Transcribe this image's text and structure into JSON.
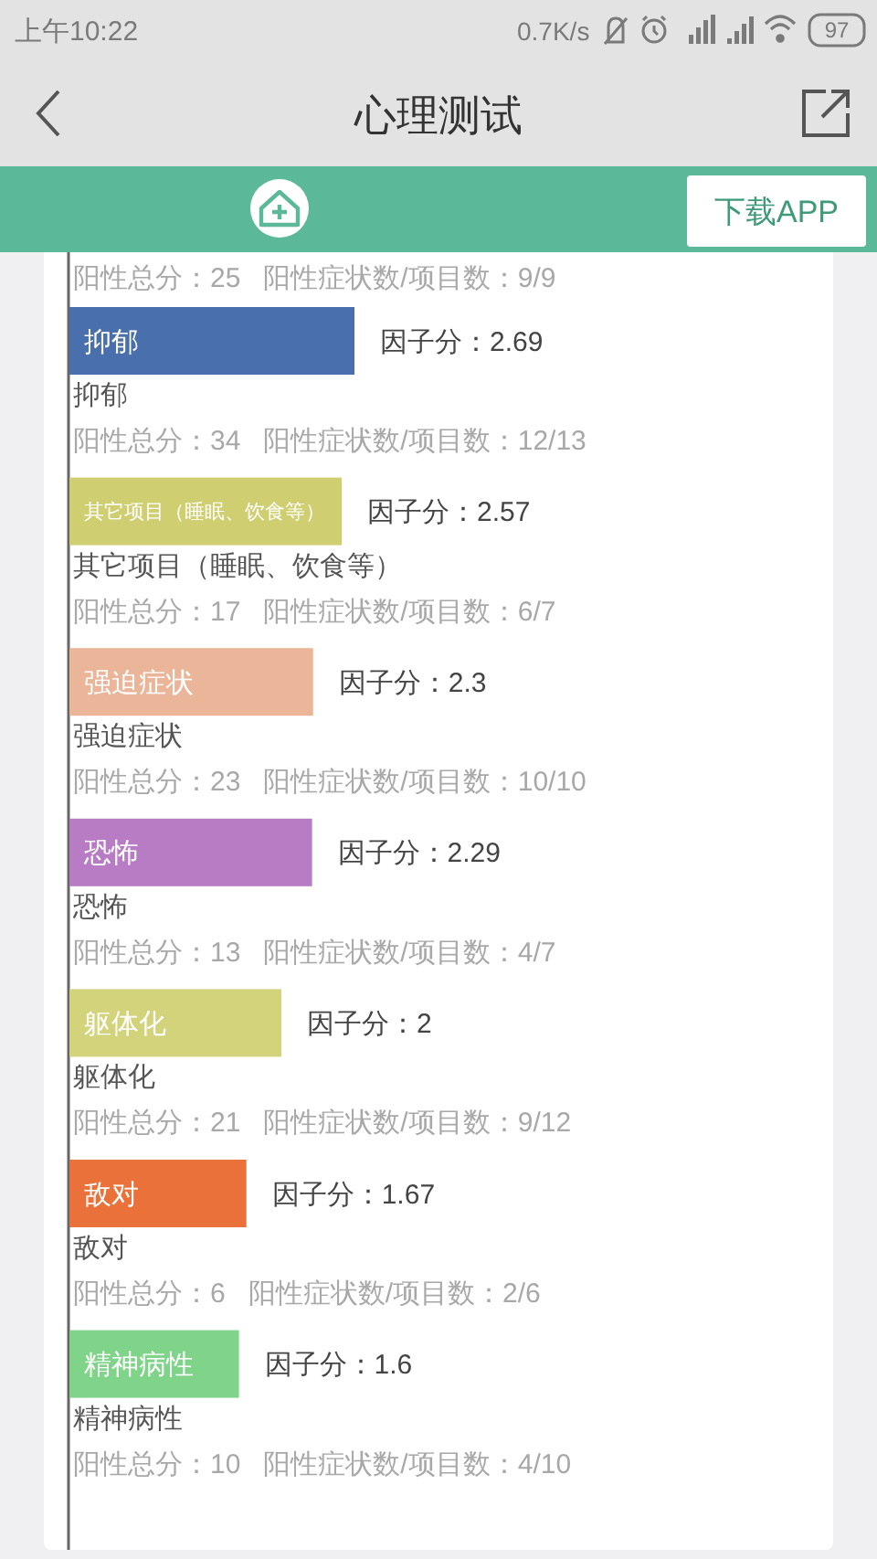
{
  "chart_data": {
    "type": "bar",
    "orientation": "horizontal",
    "title": "心理测试",
    "categories": [
      "抑郁",
      "其它项目（睡眠、饮食等）",
      "强迫症状",
      "恐怖",
      "躯体化",
      "敌对",
      "精神病性"
    ],
    "values": [
      2.69,
      2.57,
      2.3,
      2.29,
      2,
      1.67,
      1.6
    ],
    "colors": [
      "#4a6fad",
      "#cfcf72",
      "#eab598",
      "#b77cc4",
      "#d3d37c",
      "#ea7139",
      "#7fd48a"
    ],
    "value_labels": [
      "因子分：2.69",
      "因子分：2.57",
      "因子分：2.3",
      "因子分：2.29",
      "因子分：2",
      "因子分：1.67",
      "因子分：1.6"
    ],
    "annotations": [
      "上午10:22",
      "0.7K/s",
      "97",
      "下载APP",
      "阳性总分：25   阳性症状数/项目数：9/9",
      "阳性总分：34   阳性症状数/项目数：12/13",
      "阳性总分：17   阳性症状数/项目数：6/7",
      "阳性总分：23   阳性症状数/项目数：10/10",
      "阳性总分：13   阳性症状数/项目数：4/7",
      "阳性总分：21   阳性症状数/项目数：9/12",
      "阳性总分：6   阳性症状数/项目数：2/6",
      "阳性总分：10   阳性症状数/项目数：4/10"
    ]
  }
}
